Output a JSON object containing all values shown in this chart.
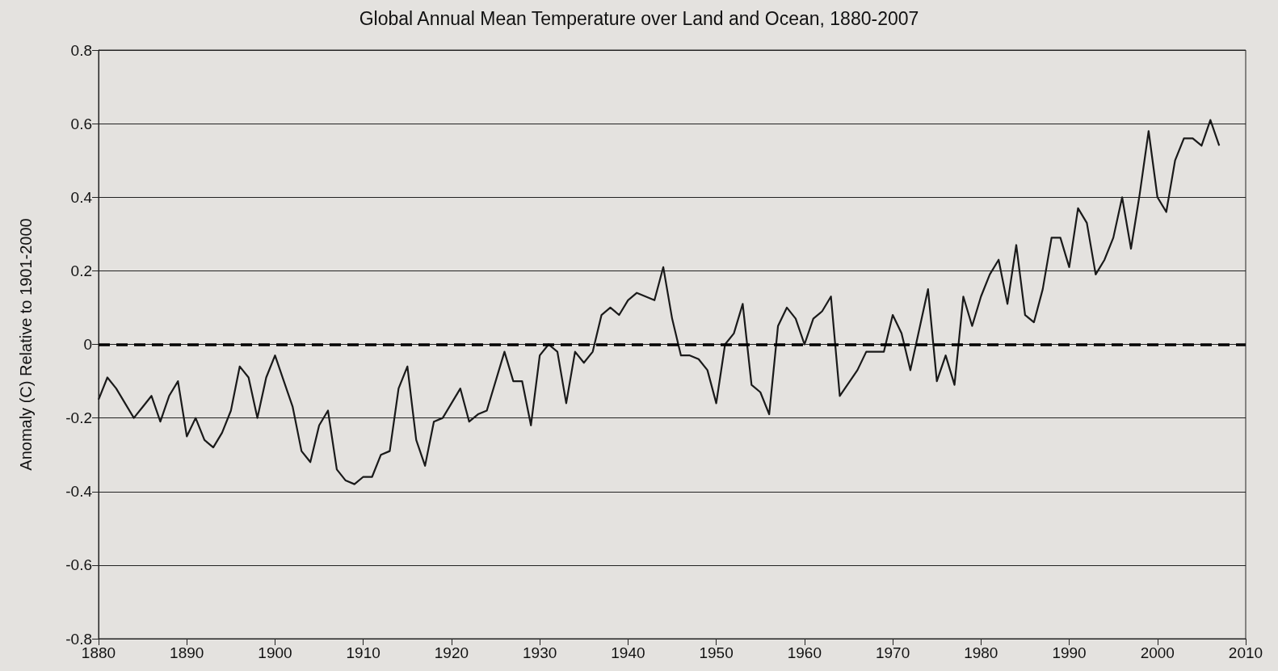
{
  "chart_data": {
    "type": "line",
    "title": "Global Annual Mean Temperature over Land and Ocean, 1880-2007",
    "ylabel": "Anomaly (C) Relative to 1901-2000",
    "x": [
      1880,
      1881,
      1882,
      1883,
      1884,
      1885,
      1886,
      1887,
      1888,
      1889,
      1890,
      1891,
      1892,
      1893,
      1894,
      1895,
      1896,
      1897,
      1898,
      1899,
      1900,
      1901,
      1902,
      1903,
      1904,
      1905,
      1906,
      1907,
      1908,
      1909,
      1910,
      1911,
      1912,
      1913,
      1914,
      1915,
      1916,
      1917,
      1918,
      1919,
      1920,
      1921,
      1922,
      1923,
      1924,
      1926,
      1927,
      1928,
      1929,
      1930,
      1931,
      1932,
      1933,
      1934,
      1935,
      1936,
      1937,
      1938,
      1939,
      1940,
      1941,
      1942,
      1943,
      1944,
      1945,
      1946,
      1947,
      1948,
      1949,
      1950,
      1951,
      1952,
      1953,
      1954,
      1955,
      1956,
      1957,
      1958,
      1959,
      1960,
      1961,
      1962,
      1963,
      1964,
      1966,
      1967,
      1968,
      1969,
      1970,
      1971,
      1972,
      1974,
      1975,
      1976,
      1977,
      1978,
      1979,
      1980,
      1981,
      1982,
      1983,
      1984,
      1985,
      1986,
      1987,
      1988,
      1989,
      1990,
      1991,
      1992,
      1993,
      1994,
      1995,
      1996,
      1997,
      1998,
      1999,
      2000,
      2001,
      2002,
      2003,
      2004,
      2005,
      2006,
      2007
    ],
    "series": [
      {
        "color": "#1a1a1a",
        "values": [
          -0.15,
          -0.09,
          -0.12,
          -0.16,
          -0.2,
          -0.17,
          -0.14,
          -0.21,
          -0.14,
          -0.1,
          -0.25,
          -0.2,
          -0.26,
          -0.28,
          -0.24,
          -0.18,
          -0.06,
          -0.09,
          -0.2,
          -0.09,
          -0.03,
          -0.1,
          -0.17,
          -0.29,
          -0.32,
          -0.22,
          -0.18,
          -0.34,
          -0.37,
          -0.38,
          -0.36,
          -0.36,
          -0.3,
          -0.29,
          -0.12,
          -0.06,
          -0.26,
          -0.33,
          -0.21,
          -0.2,
          -0.16,
          -0.12,
          -0.21,
          -0.19,
          -0.18,
          -0.02,
          -0.1,
          -0.1,
          -0.22,
          -0.03,
          0,
          -0.02,
          -0.16,
          -0.02,
          -0.05,
          -0.02,
          0.08,
          0.1,
          0.08,
          0.12,
          0.14,
          0.13,
          0.12,
          0.21,
          0.07,
          -0.03,
          -0.03,
          -0.04,
          -0.07,
          -0.16,
          0,
          0.03,
          0.11,
          -0.11,
          -0.13,
          -0.19,
          0.05,
          0.1,
          0.07,
          0,
          0.07,
          0.09,
          0.13,
          -0.14,
          -0.07,
          -0.02,
          -0.02,
          -0.02,
          0.08,
          0.03,
          -0.07,
          0.15,
          -0.1,
          -0.03,
          -0.11,
          0.13,
          0.05,
          0.13,
          0.19,
          0.23,
          0.11,
          0.27,
          0.08,
          0.06,
          0.15,
          0.29,
          0.29,
          0.21,
          0.37,
          0.33,
          0.19,
          0.23,
          0.29,
          0.4,
          0.26,
          0.41,
          0.58,
          0.4,
          0.36,
          0.5,
          0.56,
          0.56,
          0.54,
          0.61,
          0.54
        ]
      }
    ],
    "xlim": [
      1880,
      2010
    ],
    "xticks": [
      1880,
      1890,
      1900,
      1910,
      1920,
      1930,
      1940,
      1950,
      1960,
      1970,
      1980,
      1990,
      2000,
      2010
    ],
    "ylim": [
      -0.8,
      0.8
    ],
    "yticks": [
      -0.8,
      -0.6,
      -0.4,
      -0.2,
      0,
      0.2,
      0.4,
      0.6,
      0.8
    ],
    "grid": "y",
    "marker": "none",
    "line_style": "solid",
    "ref_lines": [
      {
        "axis": "y",
        "value": 0,
        "color": "#000000",
        "line_style": "dashed"
      }
    ]
  }
}
